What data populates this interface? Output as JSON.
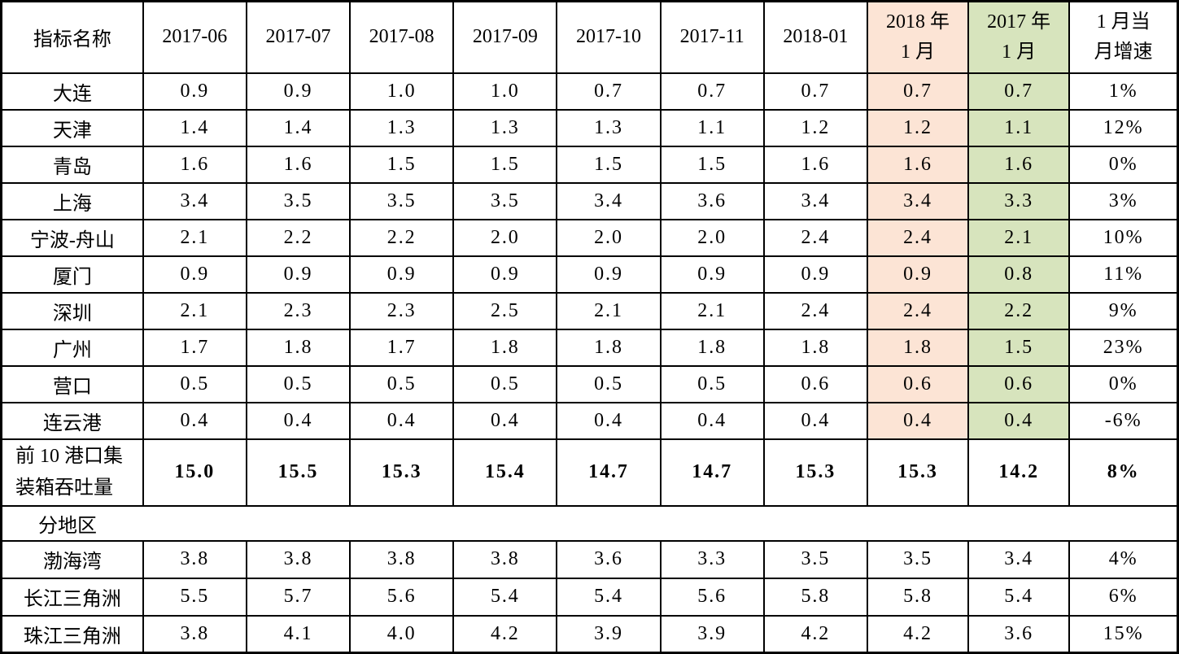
{
  "colors": {
    "highlight_2018_bg": "#fce4d5",
    "highlight_2017_bg": "#d7e4bd",
    "border": "#000000",
    "text": "#000000"
  },
  "table": {
    "header": {
      "name": "指标名称",
      "dates": [
        "2017-06",
        "2017-07",
        "2017-08",
        "2017-09",
        "2017-10",
        "2017-11",
        "2018-01"
      ],
      "col_2018": [
        "2018 年",
        "1 月"
      ],
      "col_2017": [
        "2017 年",
        "1 月"
      ],
      "growth": [
        "1 月当",
        "月增速"
      ]
    },
    "rows": [
      {
        "type": "port",
        "name": "大连",
        "values": [
          "0.9",
          "0.9",
          "1.0",
          "1.0",
          "0.7",
          "0.7",
          "0.7"
        ],
        "v2018": "0.7",
        "v2017": "0.7",
        "growth": "1%",
        "highlight": true
      },
      {
        "type": "port",
        "name": "天津",
        "values": [
          "1.4",
          "1.4",
          "1.3",
          "1.3",
          "1.3",
          "1.1",
          "1.2"
        ],
        "v2018": "1.2",
        "v2017": "1.1",
        "growth": "12%",
        "highlight": true
      },
      {
        "type": "port",
        "name": "青岛",
        "values": [
          "1.6",
          "1.6",
          "1.5",
          "1.5",
          "1.5",
          "1.5",
          "1.6"
        ],
        "v2018": "1.6",
        "v2017": "1.6",
        "growth": "0%",
        "highlight": true
      },
      {
        "type": "port",
        "name": "上海",
        "values": [
          "3.4",
          "3.5",
          "3.5",
          "3.5",
          "3.4",
          "3.6",
          "3.4"
        ],
        "v2018": "3.4",
        "v2017": "3.3",
        "growth": "3%",
        "highlight": true
      },
      {
        "type": "port",
        "name": "宁波-舟山",
        "values": [
          "2.1",
          "2.2",
          "2.2",
          "2.0",
          "2.0",
          "2.0",
          "2.4"
        ],
        "v2018": "2.4",
        "v2017": "2.1",
        "growth": "10%",
        "highlight": true
      },
      {
        "type": "port",
        "name": "厦门",
        "values": [
          "0.9",
          "0.9",
          "0.9",
          "0.9",
          "0.9",
          "0.9",
          "0.9"
        ],
        "v2018": "0.9",
        "v2017": "0.8",
        "growth": "11%",
        "highlight": true
      },
      {
        "type": "port",
        "name": "深圳",
        "values": [
          "2.1",
          "2.3",
          "2.3",
          "2.5",
          "2.1",
          "2.1",
          "2.4"
        ],
        "v2018": "2.4",
        "v2017": "2.2",
        "growth": "9%",
        "highlight": true
      },
      {
        "type": "port",
        "name": "广州",
        "values": [
          "1.7",
          "1.8",
          "1.7",
          "1.8",
          "1.8",
          "1.8",
          "1.8"
        ],
        "v2018": "1.8",
        "v2017": "1.5",
        "growth": "23%",
        "highlight": true
      },
      {
        "type": "port",
        "name": "营口",
        "values": [
          "0.5",
          "0.5",
          "0.5",
          "0.5",
          "0.5",
          "0.5",
          "0.6"
        ],
        "v2018": "0.6",
        "v2017": "0.6",
        "growth": "0%",
        "highlight": true
      },
      {
        "type": "port",
        "name": "连云港",
        "values": [
          "0.4",
          "0.4",
          "0.4",
          "0.4",
          "0.4",
          "0.4",
          "0.4"
        ],
        "v2018": "0.4",
        "v2017": "0.4",
        "growth": "-6%",
        "highlight": true
      },
      {
        "type": "total",
        "name_lines": [
          "前 10 港口集",
          "装箱吞吐量"
        ],
        "values": [
          "15.0",
          "15.5",
          "15.3",
          "15.4",
          "14.7",
          "14.7",
          "15.3"
        ],
        "v2018": "15.3",
        "v2017": "14.2",
        "growth": "8%",
        "highlight": false,
        "bold": true
      },
      {
        "type": "section",
        "name": "分地区"
      },
      {
        "type": "region",
        "name": "渤海湾",
        "values": [
          "3.8",
          "3.8",
          "3.8",
          "3.8",
          "3.6",
          "3.3",
          "3.5"
        ],
        "v2018": "3.5",
        "v2017": "3.4",
        "growth": "4%",
        "highlight": false
      },
      {
        "type": "region",
        "name": "长江三角洲",
        "values": [
          "5.5",
          "5.7",
          "5.6",
          "5.4",
          "5.4",
          "5.6",
          "5.8"
        ],
        "v2018": "5.8",
        "v2017": "5.4",
        "growth": "6%",
        "highlight": false
      },
      {
        "type": "region",
        "name": "珠江三角洲",
        "values": [
          "3.8",
          "4.1",
          "4.0",
          "4.2",
          "3.9",
          "3.9",
          "4.2"
        ],
        "v2018": "4.2",
        "v2017": "3.6",
        "growth": "15%",
        "highlight": false
      }
    ]
  }
}
